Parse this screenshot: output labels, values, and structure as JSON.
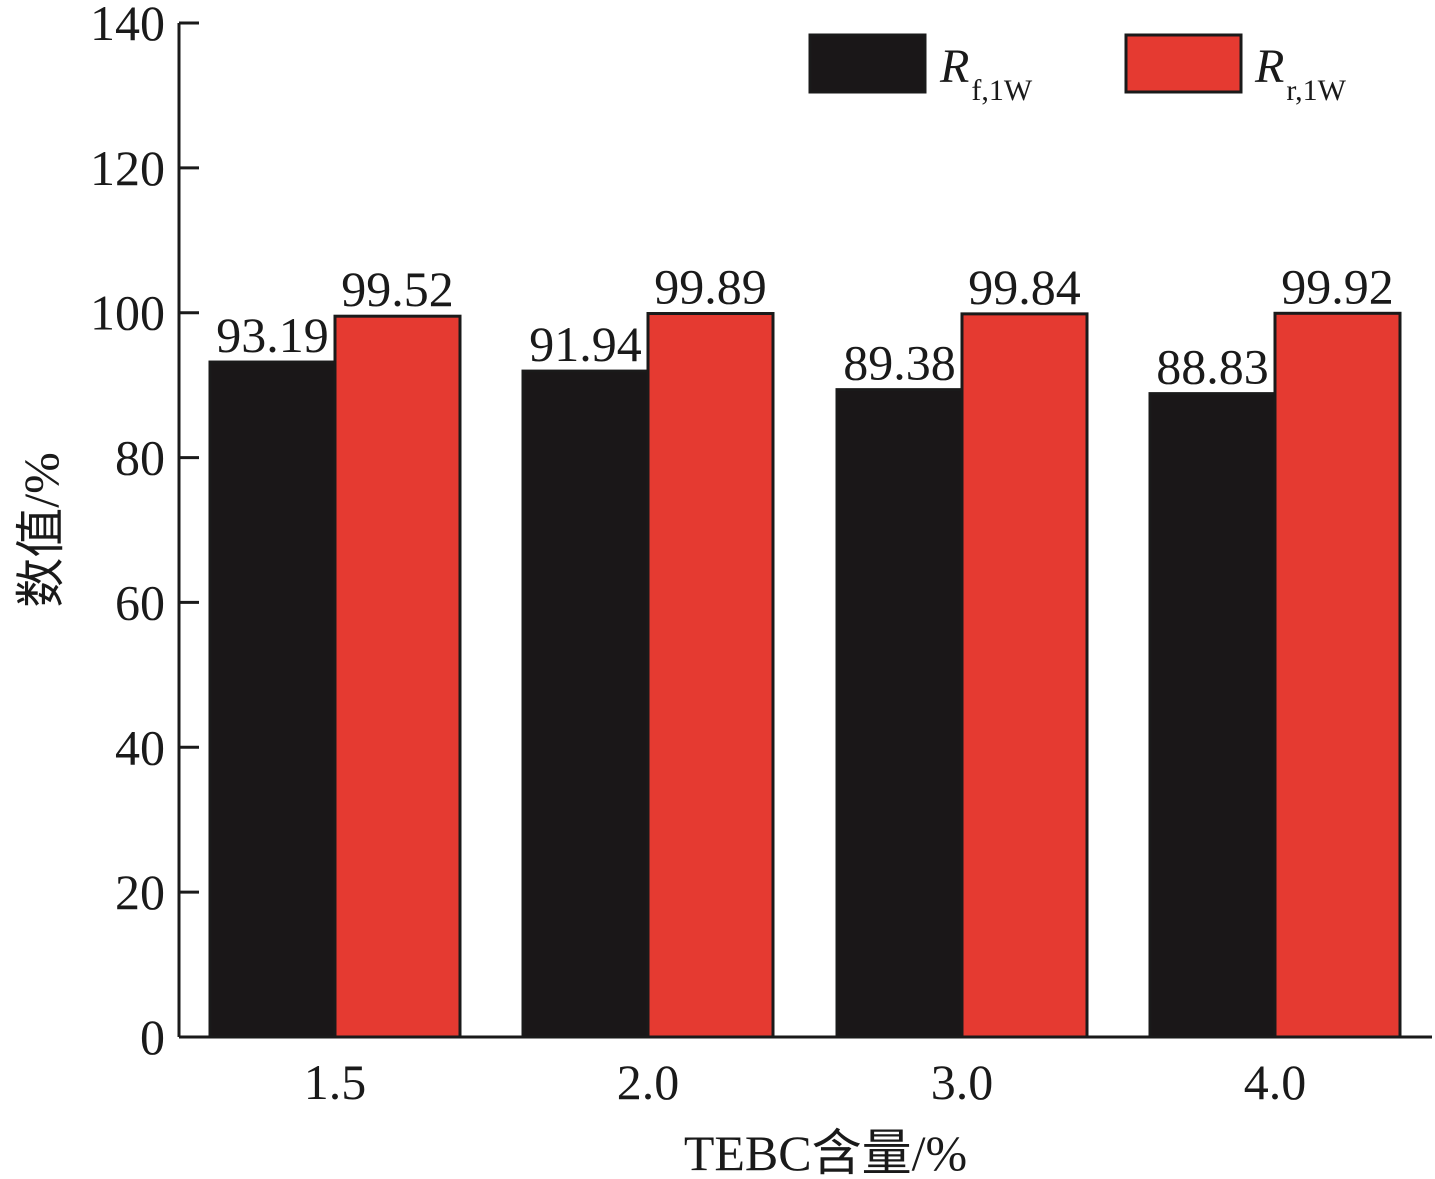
{
  "chart_data": {
    "type": "bar",
    "categories": [
      "1.5",
      "2.0",
      "3.0",
      "4.0"
    ],
    "series": [
      {
        "name": "R",
        "name_sub": "f,1W",
        "color": "#1a1718",
        "values": [
          93.19,
          91.94,
          89.38,
          88.83
        ],
        "labels": [
          "93.19",
          "91.94",
          "89.38",
          "88.83"
        ]
      },
      {
        "name": "R",
        "name_sub": "r,1W",
        "color": "#e53a31",
        "values": [
          99.52,
          99.89,
          99.84,
          99.92
        ],
        "labels": [
          "99.52",
          "99.89",
          "99.84",
          "99.92"
        ]
      }
    ],
    "title": "",
    "xlabel": "TEBC含量/%",
    "ylabel": "数值/%",
    "ylim": [
      0,
      140
    ],
    "yticks": [
      0,
      20,
      40,
      60,
      80,
      100,
      120,
      140
    ],
    "ytick_labels": [
      "0",
      "20",
      "40",
      "60",
      "80",
      "100",
      "120",
      "140"
    ],
    "grid": false,
    "legend": "top-right"
  }
}
